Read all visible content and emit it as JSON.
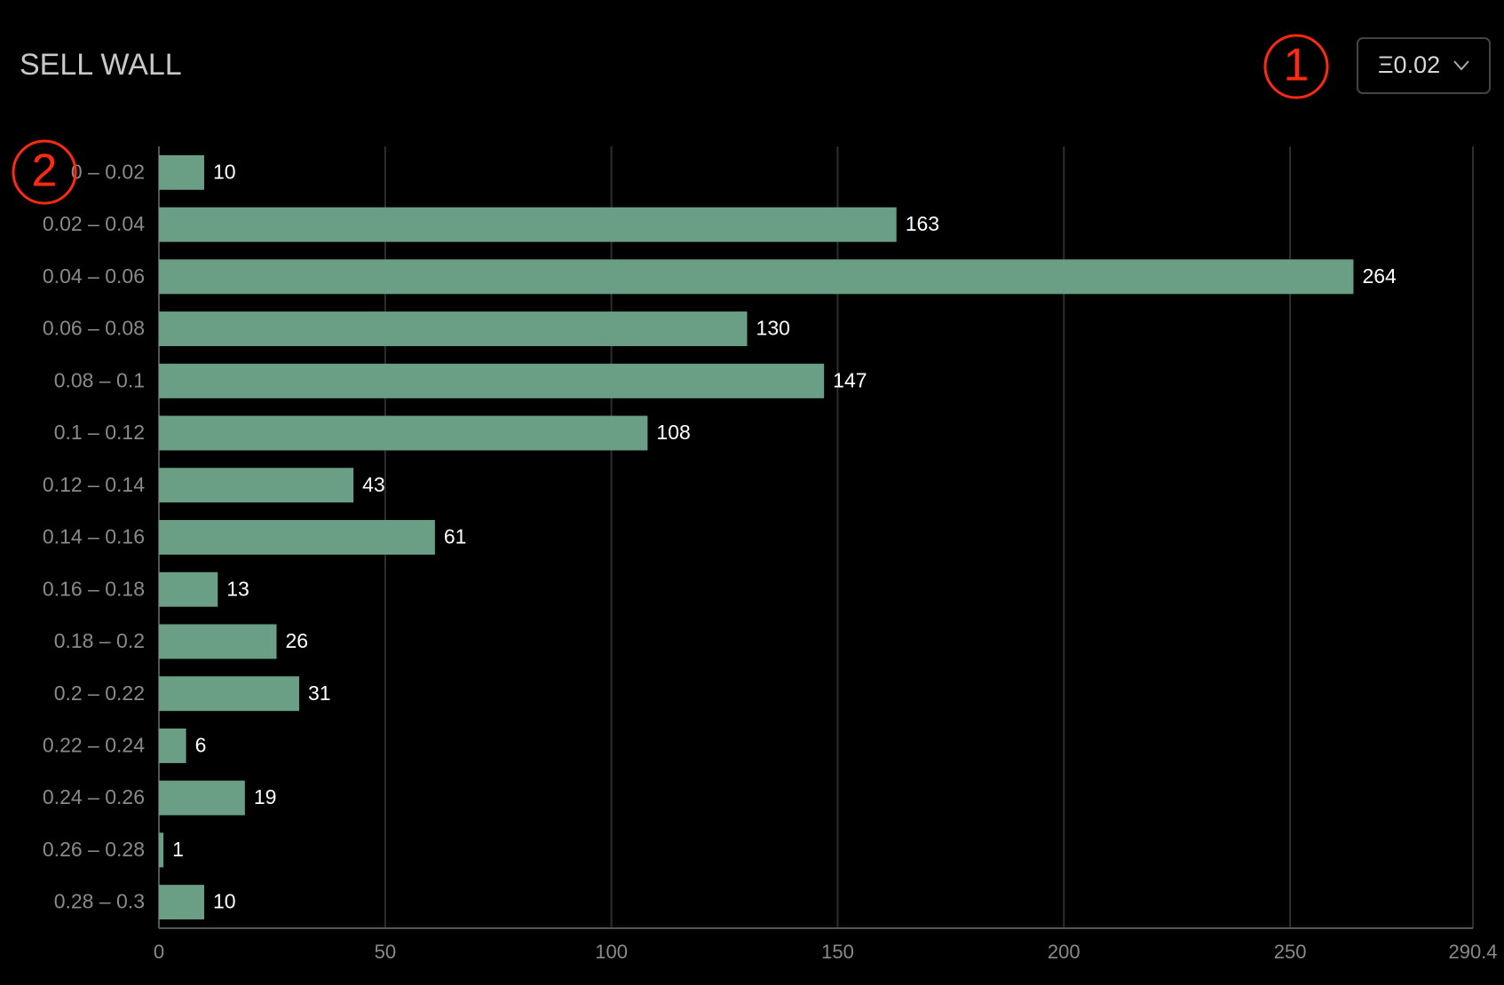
{
  "chart_data": {
    "type": "bar",
    "orientation": "horizontal",
    "title": "SELL WALL",
    "categories": [
      "0 – 0.02",
      "0.02 – 0.04",
      "0.04 – 0.06",
      "0.06 – 0.08",
      "0.08 – 0.1",
      "0.1 – 0.12",
      "0.12 – 0.14",
      "0.14 – 0.16",
      "0.16 – 0.18",
      "0.18 – 0.2",
      "0.2 – 0.22",
      "0.22 – 0.24",
      "0.24 – 0.26",
      "0.26 – 0.28",
      "0.28 – 0.3"
    ],
    "values": [
      10,
      163,
      264,
      130,
      147,
      108,
      43,
      61,
      13,
      26,
      31,
      6,
      19,
      1,
      10
    ],
    "color": "#6b9f85",
    "xlim": [
      0,
      290.4
    ],
    "xticks": [
      0,
      50,
      100,
      150,
      200,
      250,
      290.4
    ],
    "grid": true
  },
  "dropdown": {
    "label": "Ξ0.02"
  },
  "annotations": [
    "1",
    "2"
  ]
}
